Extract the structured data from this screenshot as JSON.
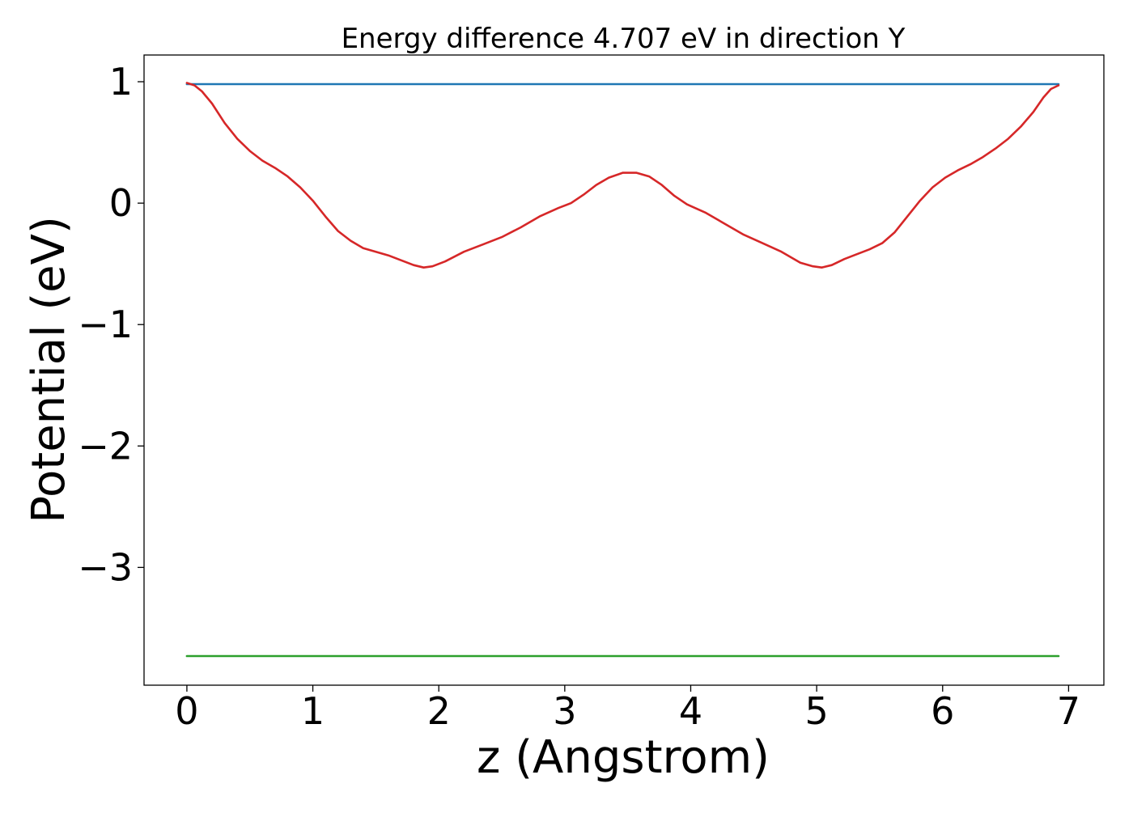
{
  "chart_data": {
    "type": "line",
    "title": "Energy difference 4.707 eV in direction Y",
    "xlabel": "z (Angstrom)",
    "ylabel": "Potential (eV)",
    "xlim": [
      -0.34,
      7.28
    ],
    "ylim": [
      -3.97,
      1.22
    ],
    "xticks": [
      0,
      1,
      2,
      3,
      4,
      5,
      6,
      7
    ],
    "xtick_labels": [
      "0",
      "1",
      "2",
      "3",
      "4",
      "5",
      "6",
      "7"
    ],
    "yticks": [
      1,
      0,
      -1,
      -2,
      -3
    ],
    "ytick_labels": [
      "1",
      "0",
      "−1",
      "−2",
      "−3"
    ],
    "grid": false,
    "series": [
      {
        "color": "#1f77b4",
        "x": [
          0,
          6.92
        ],
        "y": [
          0.98,
          0.98
        ]
      },
      {
        "color": "#2ca02c",
        "x": [
          0,
          6.92
        ],
        "y": [
          -3.73,
          -3.73
        ]
      },
      {
        "color": "#d62728",
        "x": [
          0,
          0.06,
          0.12,
          0.2,
          0.3,
          0.4,
          0.5,
          0.6,
          0.7,
          0.8,
          0.9,
          1.0,
          1.1,
          1.2,
          1.3,
          1.4,
          1.5,
          1.6,
          1.7,
          1.8,
          1.88,
          1.95,
          2.05,
          2.2,
          2.35,
          2.5,
          2.65,
          2.8,
          2.95,
          3.05,
          3.15,
          3.25,
          3.35,
          3.46,
          3.57,
          3.67,
          3.77,
          3.87,
          3.97,
          4.12,
          4.27,
          4.42,
          4.57,
          4.72,
          4.87,
          4.97,
          5.04,
          5.12,
          5.22,
          5.32,
          5.42,
          5.52,
          5.62,
          5.72,
          5.82,
          5.92,
          6.02,
          6.12,
          6.22,
          6.32,
          6.42,
          6.52,
          6.62,
          6.72,
          6.8,
          6.86,
          6.92
        ],
        "y": [
          0.99,
          0.97,
          0.92,
          0.82,
          0.66,
          0.53,
          0.43,
          0.35,
          0.29,
          0.22,
          0.13,
          0.02,
          -0.11,
          -0.23,
          -0.31,
          -0.37,
          -0.4,
          -0.43,
          -0.47,
          -0.51,
          -0.53,
          -0.52,
          -0.48,
          -0.4,
          -0.34,
          -0.28,
          -0.2,
          -0.11,
          -0.04,
          0.0,
          0.07,
          0.15,
          0.21,
          0.25,
          0.25,
          0.22,
          0.15,
          0.06,
          -0.01,
          -0.08,
          -0.17,
          -0.26,
          -0.33,
          -0.4,
          -0.49,
          -0.52,
          -0.53,
          -0.51,
          -0.46,
          -0.42,
          -0.38,
          -0.33,
          -0.24,
          -0.11,
          0.02,
          0.13,
          0.21,
          0.27,
          0.32,
          0.38,
          0.45,
          0.53,
          0.63,
          0.75,
          0.87,
          0.94,
          0.97
        ]
      }
    ]
  }
}
